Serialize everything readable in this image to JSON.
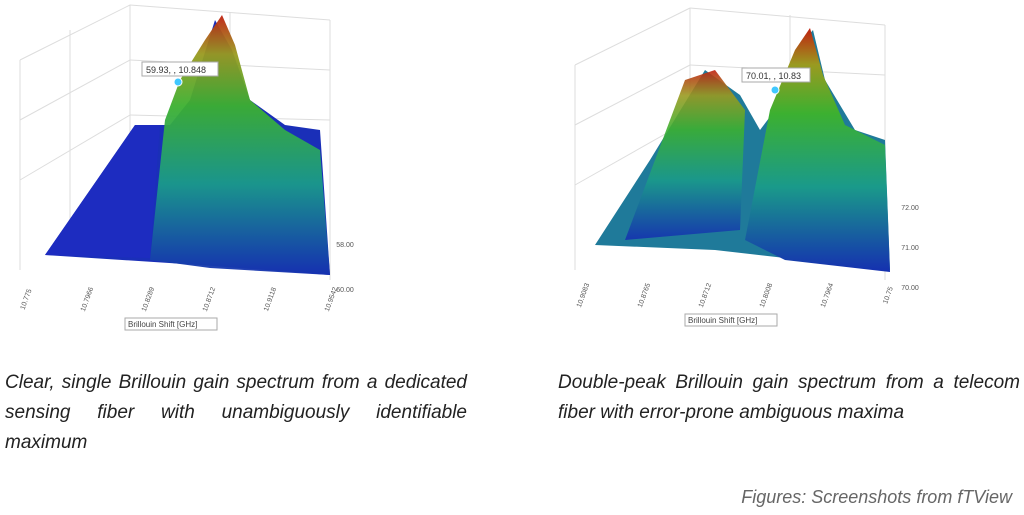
{
  "figures": [
    {
      "tooltip": "59.93, , 10.848",
      "x_ticks": [
        "10.775",
        "10.7966",
        "10.8289",
        "10.8712",
        "10.9118",
        "10.9542"
      ],
      "depth_ticks": [
        "60.00",
        "58.00"
      ],
      "axis_label": "Brillouin Shift [GHz]",
      "caption": "Clear, single Brillouin gain spectrum from a dedicated sensing fiber with unambiguously identifiable maximum"
    },
    {
      "tooltip": "70.01, , 10.83",
      "x_ticks": [
        "10.9083",
        "10.8765",
        "10.8712",
        "10.8008",
        "10.7964",
        "10.75"
      ],
      "depth_ticks": [
        "70.00",
        "71.00",
        "72.00"
      ],
      "axis_label": "Brillouin Shift [GHz]",
      "caption": "Double-peak Brillouin gain spectrum from a telecom fiber with error-prone ambiguous maxima"
    }
  ],
  "footer": "Figures: Screenshots from fTView"
}
